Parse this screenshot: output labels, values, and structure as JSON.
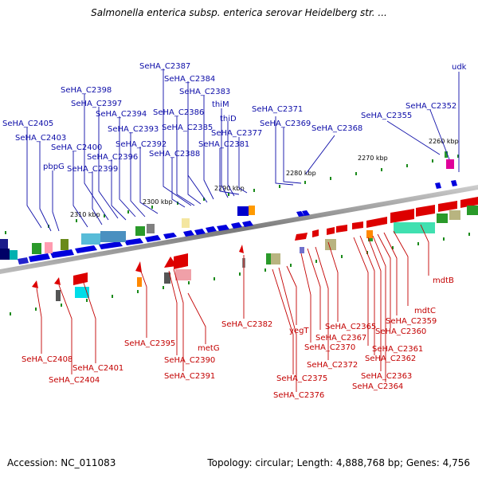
{
  "title": "Salmonella enterica subsp. enterica serovar Heidelberg str. ...",
  "footer": {
    "accession": "Accession: NC_011083",
    "summary": "Topology: circular; Length: 4,888,768 bp; Genes: 4,756"
  },
  "colors": {
    "forward": "#0000dd",
    "reverse": "#dd0000",
    "backbone": "#888888",
    "tick": "#1a8a1a",
    "label_forward": "#0d0da8",
    "label_reverse": "#c30000"
  },
  "ticks": [
    "2310 kbp",
    "2300 kbp",
    "2290 kbp",
    "2280 kbp",
    "2270 kbp",
    "2260 kbp"
  ],
  "forward_genes": [
    "SeHA_C2405",
    "SeHA_C2403",
    "pbpG",
    "SeHA_C2400",
    "SeHA_C2399",
    "SeHA_C2398",
    "SeHA_C2397",
    "SeHA_C2396",
    "SeHA_C2394",
    "SeHA_C2393",
    "SeHA_C2392",
    "SeHA_C2388",
    "SeHA_C2387",
    "SeHA_C2386",
    "SeHA_C2385",
    "SeHA_C2384",
    "SeHA_C2383",
    "thiM",
    "thiD",
    "SeHA_C2381",
    "SeHA_C2377",
    "SeHA_C2371",
    "SeHA_C2369",
    "SeHA_C2368",
    "SeHA_C2355",
    "SeHA_C2352",
    "udk"
  ],
  "reverse_genes": [
    "SeHA_C2408",
    "SeHA_C2404",
    "SeHA_C2401",
    "SeHA_C2395",
    "SeHA_C2390",
    "SeHA_C2391",
    "metG",
    "SeHA_C2382",
    "SeHA_C2375",
    "SeHA_C2376",
    "yegT",
    "SeHA_C2370",
    "SeHA_C2367",
    "SeHA_C2372",
    "SeHA_C2365",
    "SeHA_C2361",
    "SeHA_C2362",
    "SeHA_C2363",
    "SeHA_C2364",
    "SeHA_C2360",
    "SeHA_C2359",
    "mdtC",
    "mdtB"
  ]
}
